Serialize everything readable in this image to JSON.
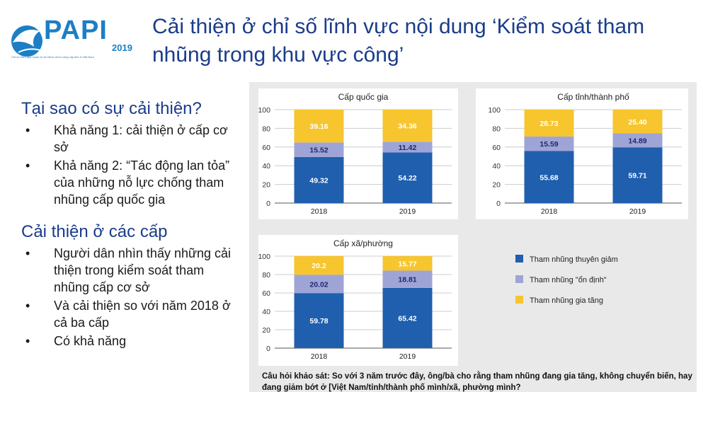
{
  "logo": {
    "text": "PAPI",
    "year": "2019",
    "subtitle": "Chỉ số Hiệu quả Quản trị và Hành chính công cấp tỉnh ở Việt Nam"
  },
  "title": "Cải thiện ở chỉ số lĩnh vực nội dung ‘Kiểm soát tham nhũng trong khu vực công’",
  "section1": {
    "heading": "Tại sao có sự cải thiện?",
    "bullets": [
      "Khả năng 1: cải thiện ở cấp cơ sở",
      "Khả năng 2: “Tác động lan tỏa” của những nỗ lực chống tham nhũng cấp quốc gia"
    ]
  },
  "section2": {
    "heading": "Cải thiện ở các cấp",
    "bullets": [
      "Người dân nhìn thấy những cải thiện trong kiểm soát tham nhũng cấp cơ sở",
      "Và cải thiện so với năm 2018 ở cả ba cấp",
      "Có khả năng"
    ]
  },
  "bullet_char": "•",
  "colors": {
    "decrease": "#1f5fae",
    "stable": "#9fa4d6",
    "increase": "#f7c52e",
    "title": "#1a3c8a",
    "logo": "#1c7fc4"
  },
  "chart_data": [
    {
      "type": "bar",
      "stacked": true,
      "title": "Cấp quốc gia",
      "categories": [
        "2018",
        "2019"
      ],
      "series": [
        {
          "name": "Tham nhũng thuyên giảm",
          "values": [
            49.32,
            54.22
          ]
        },
        {
          "name": "Tham nhũng \"ổn định\"",
          "values": [
            15.52,
            11.42
          ]
        },
        {
          "name": "Tham nhũng gia tăng",
          "values": [
            39.16,
            34.36
          ]
        }
      ],
      "yticks": [
        0,
        20,
        40,
        60,
        80,
        100
      ],
      "ylim": [
        0,
        100
      ],
      "grid": true
    },
    {
      "type": "bar",
      "stacked": true,
      "title": "Cấp tỉnh/thành phố",
      "categories": [
        "2018",
        "2019"
      ],
      "series": [
        {
          "name": "Tham nhũng thuyên giảm",
          "values": [
            55.68,
            59.71
          ]
        },
        {
          "name": "Tham nhũng \"ổn định\"",
          "values": [
            15.59,
            14.89
          ]
        },
        {
          "name": "Tham nhũng gia tăng",
          "values": [
            28.73,
            25.4
          ]
        }
      ],
      "yticks": [
        0,
        20,
        40,
        60,
        80,
        100
      ],
      "ylim": [
        0,
        100
      ],
      "grid": true
    },
    {
      "type": "bar",
      "stacked": true,
      "title": "Cấp xã/phường",
      "categories": [
        "2018",
        "2019"
      ],
      "series": [
        {
          "name": "Tham nhũng thuyên giảm",
          "values": [
            59.78,
            65.42
          ]
        },
        {
          "name": "Tham nhũng \"ổn định\"",
          "values": [
            20.02,
            18.81
          ]
        },
        {
          "name": "Tham nhũng gia tăng",
          "values": [
            20.2,
            15.77
          ]
        }
      ],
      "yticks": [
        0,
        20,
        40,
        60,
        80,
        100
      ],
      "ylim": [
        0,
        100
      ],
      "grid": true
    }
  ],
  "value_labels": [
    [
      [
        "49.32",
        "54.22"
      ],
      [
        "15.52",
        "11.42"
      ],
      [
        "39.16",
        "34.36"
      ]
    ],
    [
      [
        "55.68",
        "59.71"
      ],
      [
        "15.59",
        "14.89"
      ],
      [
        "28.73",
        "25.40"
      ]
    ],
    [
      [
        "59.78",
        "65.42"
      ],
      [
        "20.02",
        "18.81"
      ],
      [
        "20.2",
        "15.77"
      ]
    ]
  ],
  "legend": [
    {
      "label": "Tham nhũng thuyên giảm",
      "color": "#1f5fae"
    },
    {
      "label": "Tham nhũng \"ổn định\"",
      "color": "#9fa4d6"
    },
    {
      "label": "Tham nhũng gia tăng",
      "color": "#f7c52e"
    }
  ],
  "note": "Câu hỏi khảo sát: So với 3 năm trước đây, ông/bà cho rằng tham nhũng đang gia tăng, không chuyển biến, hay đang giảm bớt ở [Việt Nam/tỉnh/thành phố mình/xã, phường mình?"
}
